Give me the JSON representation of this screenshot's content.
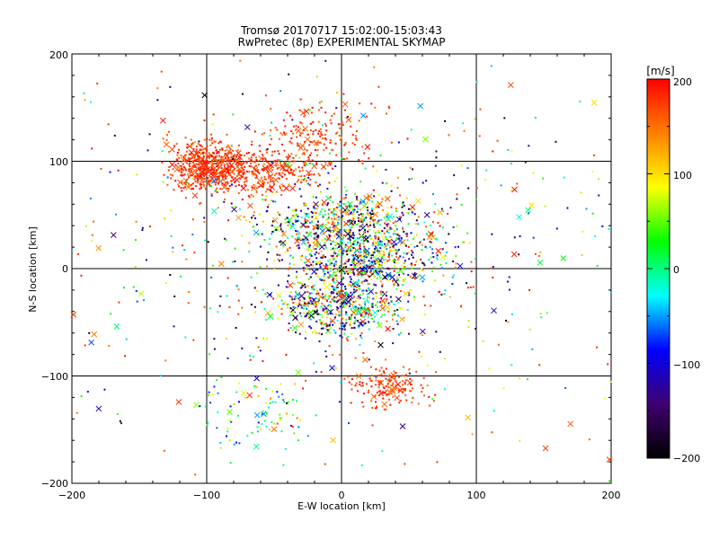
{
  "chart_data": {
    "type": "scatter",
    "title": "Tromsø 20170717 15:02:00-15:03:43",
    "subtitle": "RwPretec (8p) EXPERIMENTAL SKYMAP",
    "xlabel": "E-W location [km]",
    "ylabel": "N-S location [km]",
    "xlim": [
      -200,
      200
    ],
    "ylim": [
      -200,
      200
    ],
    "xticks": [
      "−200",
      "−100",
      "0",
      "100",
      "200"
    ],
    "yticks": [
      "−200",
      "−100",
      "0",
      "100",
      "200"
    ],
    "grid": true,
    "colorbar": {
      "unit": "[m/s]",
      "range": [
        -200,
        200
      ],
      "ticks": [
        "−200",
        "−100",
        "0",
        "100",
        "200"
      ],
      "colors": [
        "#000000",
        "#400070",
        "#0000ff",
        "#00ffff",
        "#00ff00",
        "#ffff00",
        "#ff8000",
        "#ff0000"
      ]
    },
    "clusters": [
      {
        "cx": -100,
        "cy": 95,
        "sx": 14,
        "sy": 12,
        "n": 500,
        "vmin": 150,
        "vmax": 200
      },
      {
        "cx": -60,
        "cy": 90,
        "sx": 22,
        "sy": 10,
        "n": 260,
        "vmin": 140,
        "vmax": 200
      },
      {
        "cx": -20,
        "cy": 120,
        "sx": 22,
        "sy": 15,
        "n": 180,
        "vmin": 150,
        "vmax": 200
      },
      {
        "cx": 0,
        "cy": 45,
        "sx": 30,
        "sy": 12,
        "n": 450,
        "vmin": -200,
        "vmax": 200
      },
      {
        "cx": 15,
        "cy": 10,
        "sx": 30,
        "sy": 15,
        "n": 650,
        "vmin": -200,
        "vmax": 200
      },
      {
        "cx": 0,
        "cy": -35,
        "sx": 22,
        "sy": 14,
        "n": 500,
        "vmin": -200,
        "vmax": 200
      },
      {
        "cx": 35,
        "cy": -110,
        "sx": 14,
        "sy": 10,
        "n": 150,
        "vmin": 150,
        "vmax": 200
      },
      {
        "cx": -60,
        "cy": -130,
        "sx": 25,
        "sy": 20,
        "n": 90,
        "vmin": -100,
        "vmax": 120
      },
      {
        "cx": 0,
        "cy": 20,
        "sx": 110,
        "sy": 90,
        "n": 550,
        "vmin": -200,
        "vmax": 200
      },
      {
        "cx": 0,
        "cy": 0,
        "sx": 160,
        "sy": 150,
        "n": 160,
        "vmin": 140,
        "vmax": 200
      }
    ]
  }
}
